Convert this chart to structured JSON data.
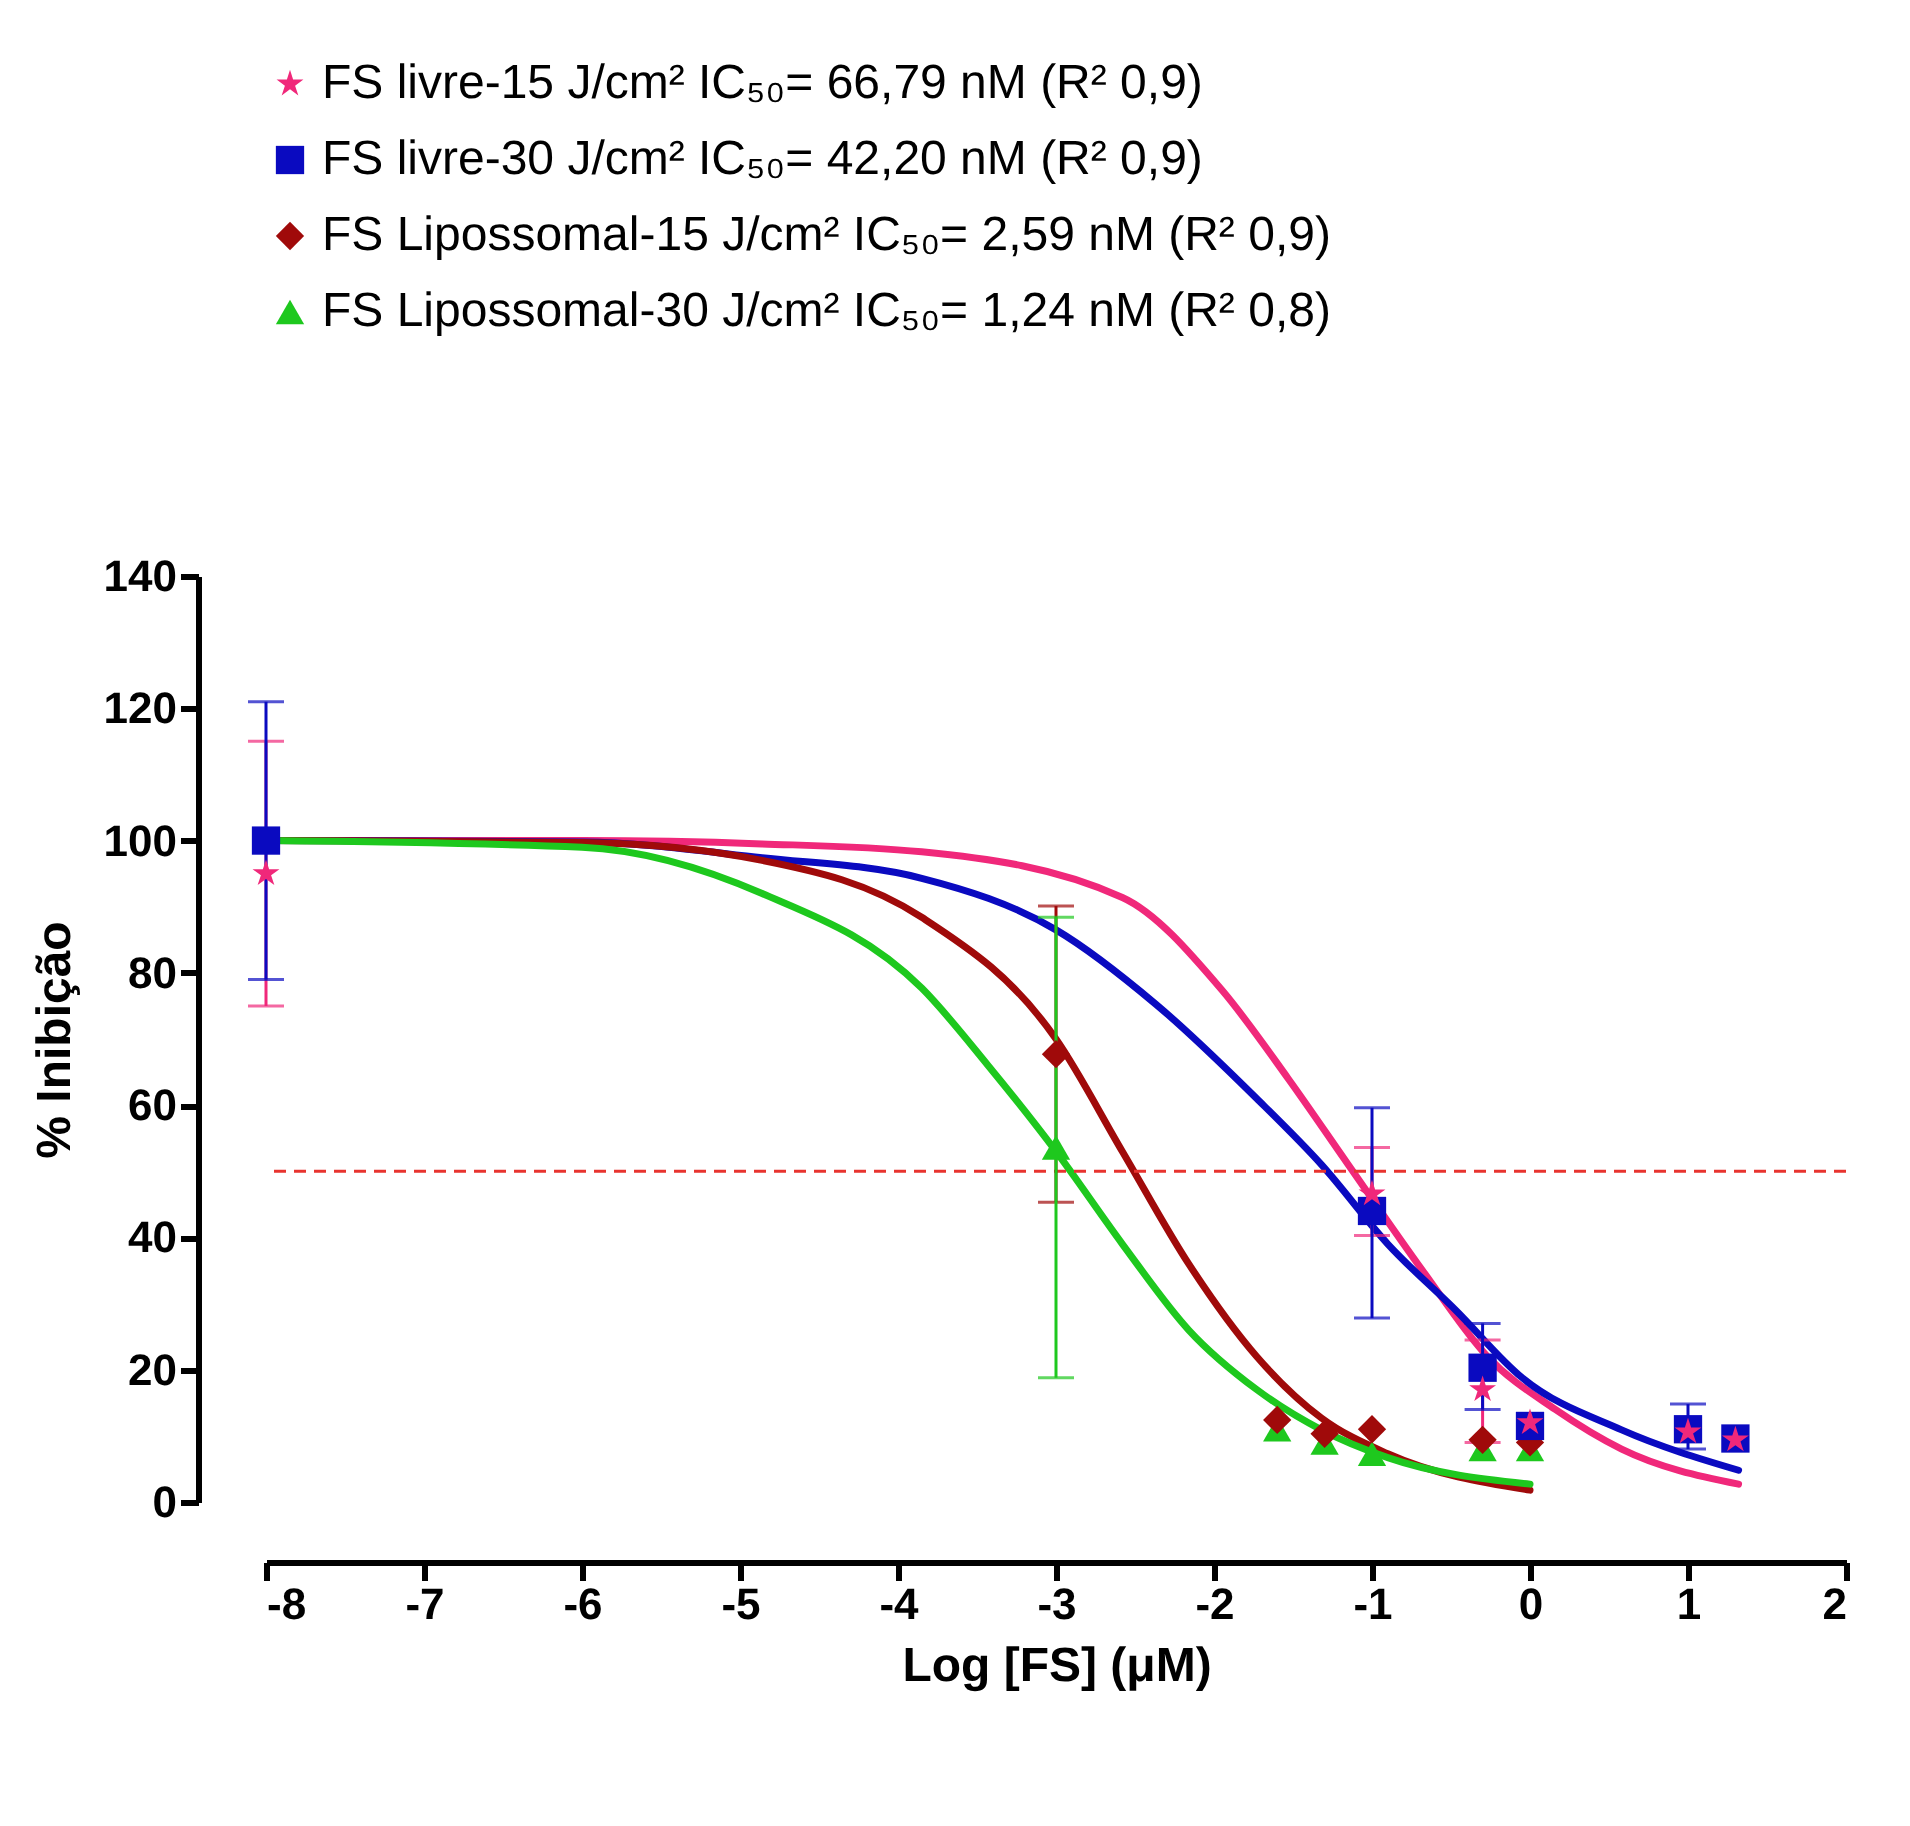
{
  "chart_data": {
    "type": "scatter",
    "xlabel": "Log [FS] (μM)",
    "ylabel": "% Inibição",
    "xlim": [
      -8,
      2
    ],
    "ylim": [
      0,
      140
    ],
    "xticks": [
      -8,
      -7,
      -6,
      -5,
      -4,
      -3,
      -2,
      -1,
      0,
      1,
      2
    ],
    "yticks": [
      0,
      20,
      40,
      60,
      80,
      100,
      120,
      140
    ],
    "grid": false,
    "legend": "top",
    "ref_lines": [
      {
        "axis": "y",
        "value": 50,
        "color": "#e8332f",
        "line_style": "dashed"
      }
    ],
    "series": [
      {
        "name": "FS livre-15 J/cm² IC₅₀= 66,79 nM (R² 0,9)",
        "color": "#f0287a",
        "marker": "star",
        "x": [
          -8,
          -1,
          -0.3,
          0,
          1,
          1.3
        ],
        "values": [
          95,
          46.6,
          17,
          12,
          10.6,
          9.4
        ],
        "errors": [
          [
            75,
            115
          ],
          [
            40.3,
            53.6
          ],
          [
            9,
            24.5
          ],
          null,
          null,
          null
        ]
      },
      {
        "name": "FS livre-30 J/cm²  IC₅₀= 42,20 nM (R² 0,9)",
        "color": "#0a0ac0",
        "marker": "square",
        "x": [
          -8,
          -1,
          -0.3,
          0,
          1,
          1.3
        ],
        "values": [
          100,
          44,
          20.3,
          11.5,
          11,
          9.6
        ],
        "errors": [
          [
            79,
            121
          ],
          [
            27.8,
            59.6
          ],
          [
            14,
            27
          ],
          null,
          [
            8,
            14.8
          ],
          null
        ]
      },
      {
        "name": "FS Lipossomal-15 J/cm² IC₅₀= 2,59 nM (R² 0,9)",
        "color": "#a00a0a",
        "marker": "diamond",
        "x": [
          -3,
          -1.6,
          -1.3,
          -1,
          -0.3,
          0
        ],
        "values": [
          67.7,
          12.4,
          10.3,
          11,
          9.4,
          9
        ],
        "errors": [
          [
            45.3,
            90.1
          ],
          null,
          null,
          null,
          null,
          null
        ]
      },
      {
        "name": "FS Lipossomal-30 J/cm²  IC₅₀= 1,24 nM (R² 0,8)",
        "color": "#1ec81e",
        "marker": "triangle",
        "x": [
          -3,
          -1.6,
          -1.3,
          -1,
          -0.3,
          0
        ],
        "values": [
          53.6,
          11,
          9,
          7.3,
          8,
          8
        ],
        "errors": [
          [
            18.8,
            88.4
          ],
          null,
          null,
          null,
          null,
          null
        ]
      },
      {
        "type": "line",
        "color": "#f0287a",
        "marker": "none",
        "x": [
          -8,
          -6,
          -4.86,
          -3.85,
          -2.58,
          -1.95,
          -1.53,
          -1.15,
          -0.68,
          -0.27,
          0.16,
          0.58,
          1.32
        ],
        "values": [
          100,
          100,
          99.5,
          98.3,
          91.4,
          77.4,
          64,
          51,
          35,
          22,
          14,
          8,
          2.7
        ]
      },
      {
        "type": "line",
        "color": "#0a0ac0",
        "marker": "none",
        "x": [
          -8,
          -6,
          -4.86,
          -3.85,
          -3,
          -2.37,
          -1.73,
          -1.32,
          -0.9,
          -0.47,
          -0.05,
          0.58,
          1.32
        ],
        "values": [
          100,
          99.8,
          97.4,
          94.3,
          86.5,
          75.3,
          61,
          51,
          39,
          29,
          18.8,
          10.9,
          4.8
        ]
      },
      {
        "type": "line",
        "color": "#a00a0a",
        "marker": "none",
        "x": [
          -8,
          -6,
          -4.86,
          -3.85,
          -3,
          -2.58,
          -2.16,
          -1.73,
          -1.32,
          -0.9,
          0
        ],
        "values": [
          100,
          99.7,
          97,
          88.4,
          70,
          53,
          36,
          22,
          12.7,
          7.3,
          1.8
        ]
      },
      {
        "type": "line",
        "color": "#1ec81e",
        "marker": "none",
        "x": [
          -8,
          -6,
          -4.86,
          -3.85,
          -3.43,
          -3,
          -2.58,
          -2.16,
          -1.73,
          -1.32,
          -0.9,
          0
        ],
        "values": [
          100,
          99,
          92,
          77.7,
          66,
          53,
          39,
          26,
          17,
          10.9,
          6.7,
          2.7
        ]
      }
    ]
  }
}
